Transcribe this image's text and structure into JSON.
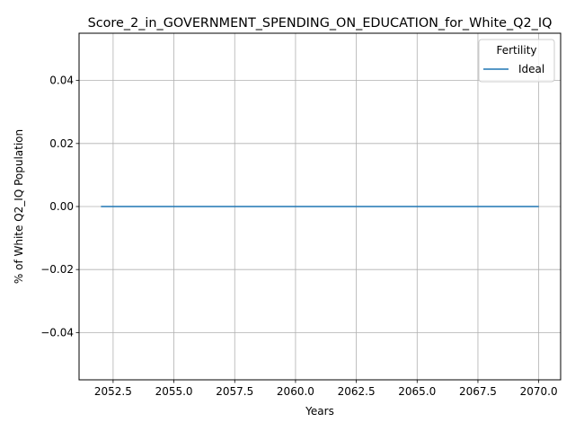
{
  "chart_data": {
    "type": "line",
    "title": "Score_2_in_GOVERNMENT_SPENDING_ON_EDUCATION_for_White_Q2_IQ",
    "xlabel": "Years",
    "ylabel": "% of White Q2_IQ Population",
    "xlim": [
      2051.1,
      2070.9
    ],
    "ylim": [
      -0.055,
      0.055
    ],
    "x_ticks": [
      "2052.5",
      "2055.0",
      "2057.5",
      "2060.0",
      "2062.5",
      "2065.0",
      "2067.5",
      "2070.0"
    ],
    "x_tick_values": [
      2052.5,
      2055.0,
      2057.5,
      2060.0,
      2062.5,
      2065.0,
      2067.5,
      2070.0
    ],
    "y_ticks": [
      "−0.04",
      "−0.02",
      "0.00",
      "0.02",
      "0.04"
    ],
    "y_tick_values": [
      -0.04,
      -0.02,
      0.0,
      0.02,
      0.04
    ],
    "grid": true,
    "legend": {
      "title": "Fertility",
      "placement": "top-right"
    },
    "series": [
      {
        "name": "Ideal",
        "color": "#1f77b4",
        "x": [
          2052,
          2053,
          2054,
          2055,
          2056,
          2057,
          2058,
          2059,
          2060,
          2061,
          2062,
          2063,
          2064,
          2065,
          2066,
          2067,
          2068,
          2069,
          2070
        ],
        "y": [
          0,
          0,
          0,
          0,
          0,
          0,
          0,
          0,
          0,
          0,
          0,
          0,
          0,
          0,
          0,
          0,
          0,
          0,
          0
        ]
      }
    ]
  }
}
